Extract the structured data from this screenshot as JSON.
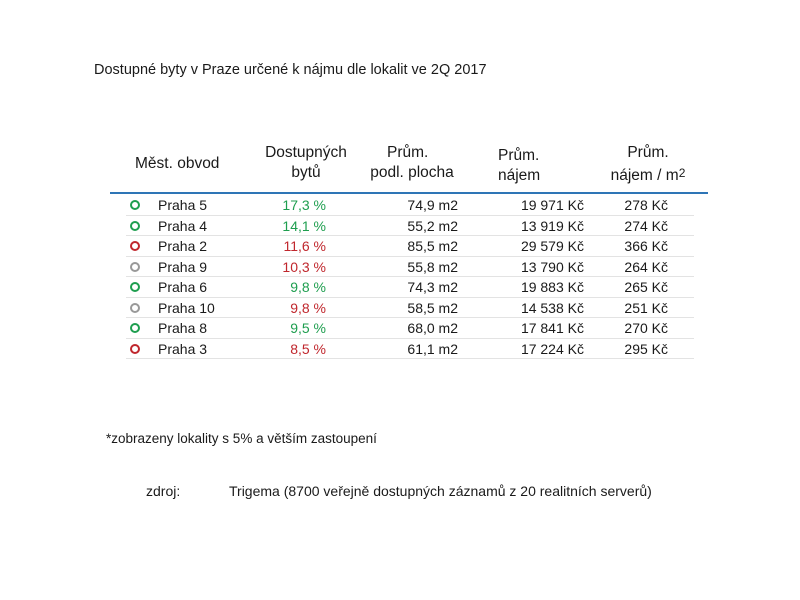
{
  "title": "Dostupné byty v Praze určené k nájmu dle lokalit ve 2Q 2017",
  "colors": {
    "green": "#1e9e4f",
    "red": "#c0272d",
    "gray": "#999999",
    "header_rule": "#2e75b6"
  },
  "table": {
    "headers": {
      "district": "Měst. obvod",
      "avail_line1": "Dostupných",
      "avail_line2": "bytů",
      "area_line1": "Prům.",
      "area_line2": "podl. plocha",
      "rent_line1": "Prům.",
      "rent_line2": "nájem",
      "rentm2_line1": "Prům.",
      "rentm2_line2": "nájem / m",
      "rentm2_sup": "2"
    },
    "rows": [
      {
        "status": "green",
        "district": "Praha 5",
        "available": "17,3 %",
        "area": "74,9 m2",
        "rent": "19 971 Kč",
        "rent_m2": "278 Kč"
      },
      {
        "status": "green",
        "district": "Praha 4",
        "available": "14,1 %",
        "area": "55,2 m2",
        "rent": "13 919 Kč",
        "rent_m2": "274 Kč"
      },
      {
        "status": "red",
        "district": "Praha 2",
        "available": "11,6 %",
        "area": "85,5 m2",
        "rent": "29 579 Kč",
        "rent_m2": "366 Kč"
      },
      {
        "status": "gray",
        "district": "Praha 9",
        "available": "10,3 %",
        "area": "55,8 m2",
        "rent": "13 790 Kč",
        "rent_m2": "264 Kč"
      },
      {
        "status": "green",
        "district": "Praha 6",
        "available": "9,8 %",
        "area": "74,3 m2",
        "rent": "19 883 Kč",
        "rent_m2": "265 Kč"
      },
      {
        "status": "gray",
        "district": "Praha 10",
        "available": "9,8 %",
        "area": "58,5 m2",
        "rent": "14 538 Kč",
        "rent_m2": "251 Kč"
      },
      {
        "status": "green",
        "district": "Praha 8",
        "available": "9,5 %",
        "area": "68,0 m2",
        "rent": "17 841 Kč",
        "rent_m2": "270 Kč"
      },
      {
        "status": "red",
        "district": "Praha 3",
        "available": "8,5 %",
        "area": "61,1 m2",
        "rent": "17 224 Kč",
        "rent_m2": "295 Kč"
      }
    ]
  },
  "note": "*zobrazeny lokality s 5% a větším zastoupení",
  "source": {
    "label": "zdroj:",
    "value": "Trigema (8700 veřejně dostupných záznamů z 20 realitních serverů)"
  }
}
